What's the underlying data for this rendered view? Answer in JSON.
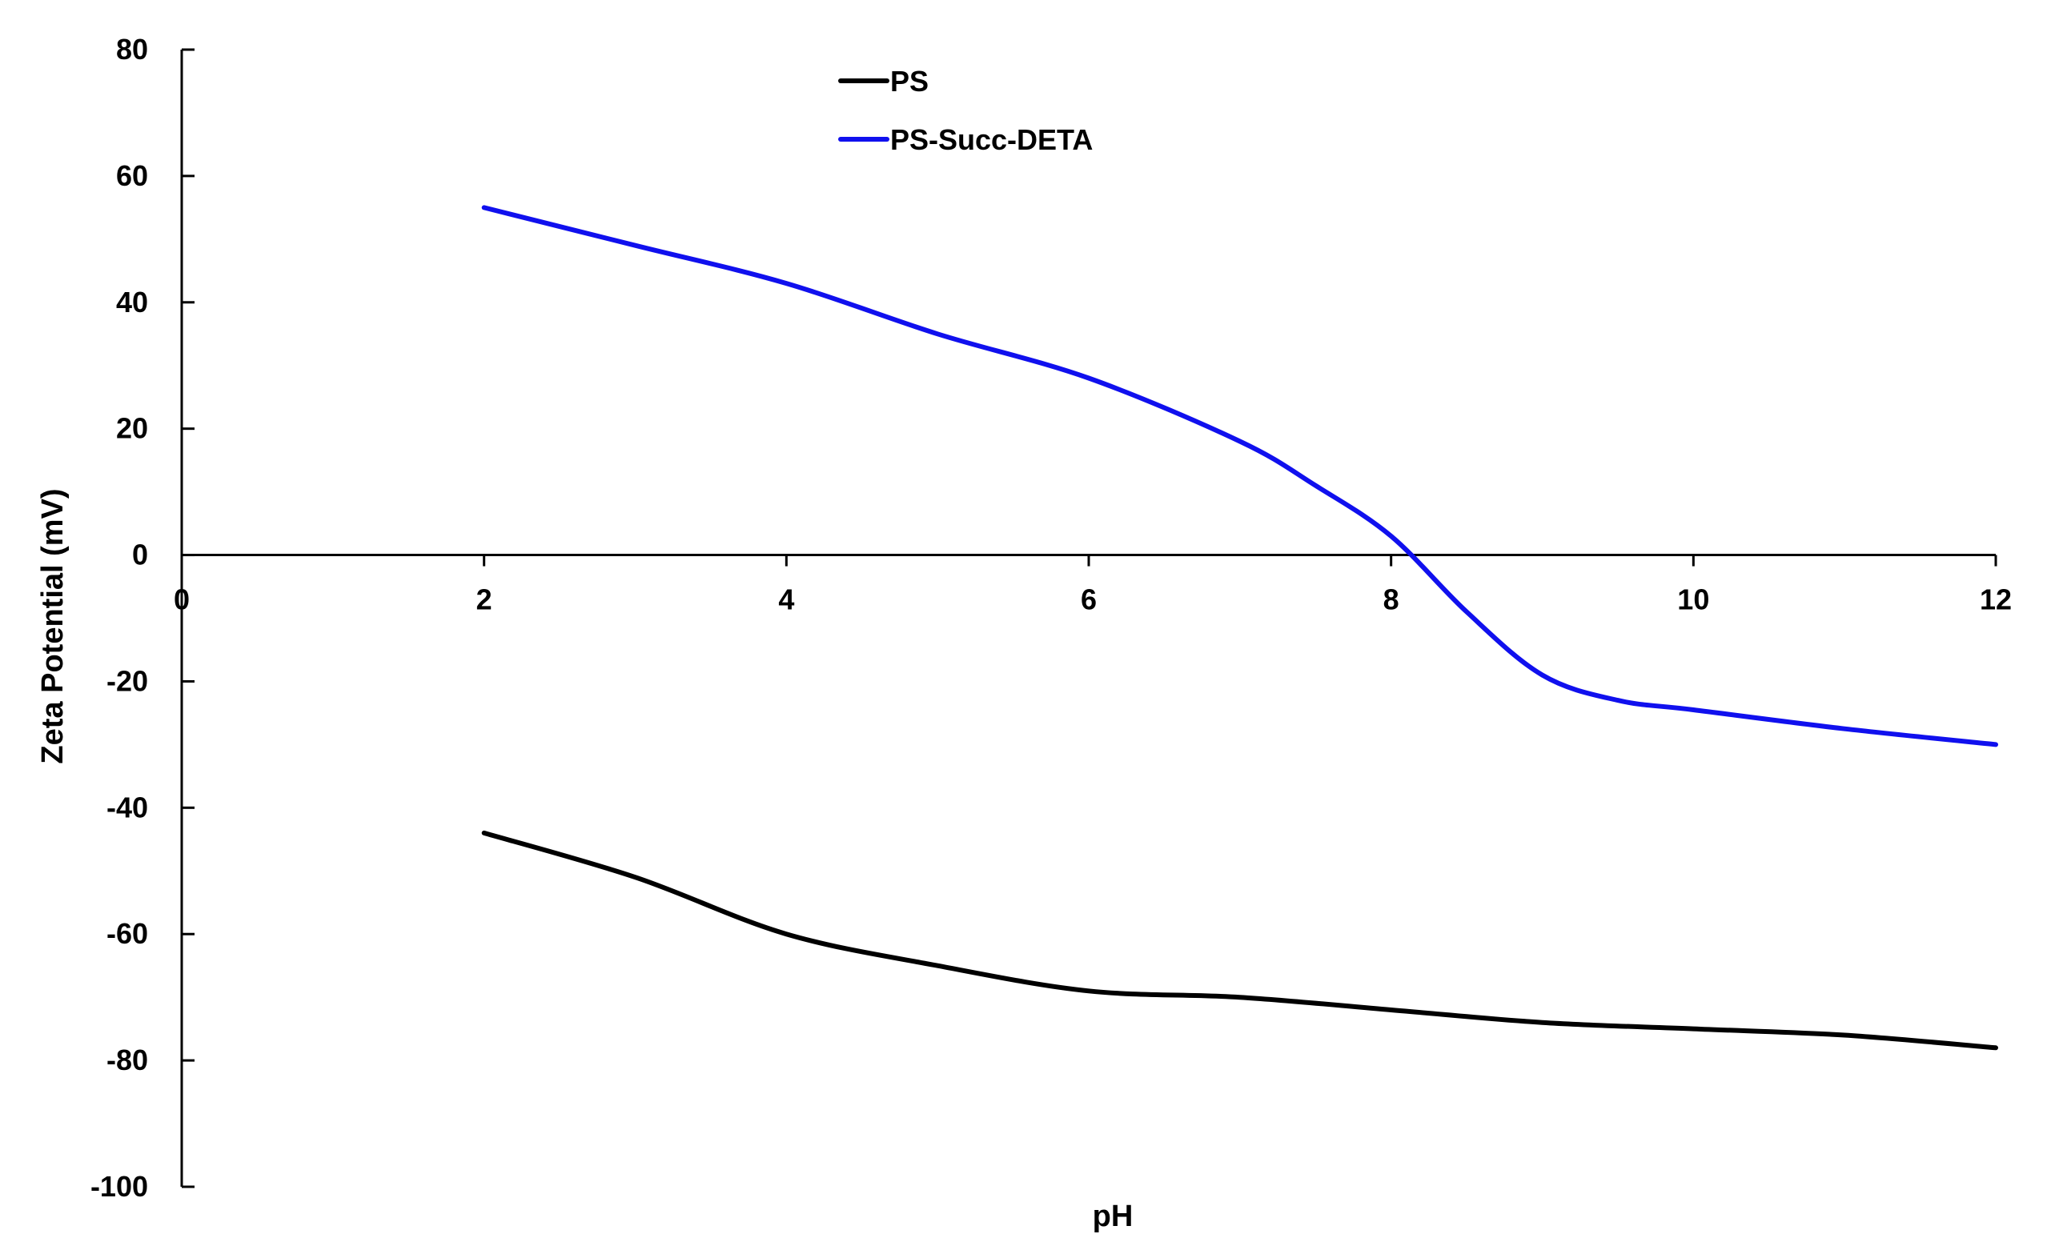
{
  "chart_data": {
    "type": "line",
    "title": "",
    "xlabel": "pH",
    "ylabel": "Zeta Potential (mV)",
    "xlim": [
      0,
      12
    ],
    "ylim": [
      -100,
      80
    ],
    "x_ticks": [
      0,
      2,
      4,
      6,
      8,
      10,
      12
    ],
    "y_ticks": [
      80,
      60,
      40,
      20,
      0,
      -20,
      -40,
      -60,
      -80,
      -100
    ],
    "grid": false,
    "legend_position": "top-center",
    "series": [
      {
        "name": "PS",
        "color": "#000000",
        "x": [
          2,
          3,
          4,
          5,
          6,
          7,
          8,
          9,
          10,
          11,
          12
        ],
        "y": [
          -44,
          -51,
          -60,
          -65,
          -69,
          -70,
          -72,
          -74,
          -75,
          -76,
          -78
        ]
      },
      {
        "name": "PS-Succ-DETA",
        "color": "#1010ee",
        "x": [
          2,
          3,
          4,
          5,
          6,
          7,
          7.5,
          8,
          8.5,
          9,
          9.5,
          10,
          11,
          12
        ],
        "y": [
          55,
          49,
          43,
          35,
          28,
          18,
          11,
          3,
          -9,
          -19,
          -23,
          -24.5,
          -27.5,
          -30
        ]
      }
    ]
  }
}
